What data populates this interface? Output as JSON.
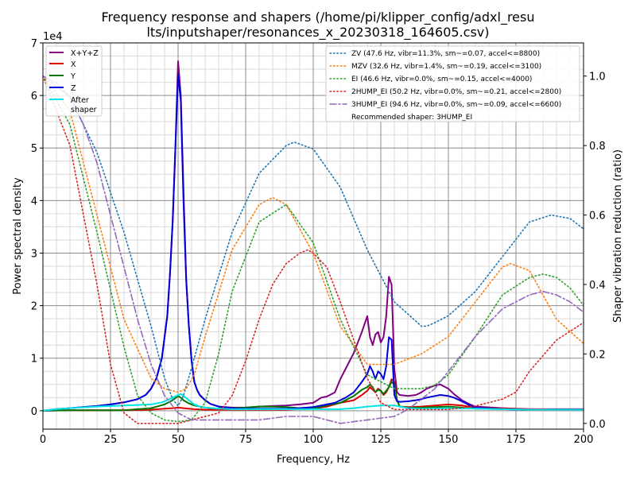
{
  "chart_data": {
    "type": "line",
    "title_line1": "Frequency response and shapers (/home/pi/klipper_config/adxl_resu",
    "title_line2": "lts/inputshaper/resonances_x_20230318_164605.csv)",
    "xlabel": "Frequency, Hz",
    "ylabel": "Power spectral density",
    "y2label": "Shaper vibration reduction (ratio)",
    "offset_label": "1e4",
    "xlim": [
      0,
      200
    ],
    "ylim": [
      -0.35,
      7
    ],
    "y2lim": [
      -0.0165,
      1.0955
    ],
    "x_ticks": [
      0,
      25,
      50,
      75,
      100,
      125,
      150,
      175,
      200
    ],
    "y_ticks": [
      0,
      1,
      2,
      3,
      4,
      5,
      6,
      7
    ],
    "y2_ticks": [
      0.0,
      0.2,
      0.4,
      0.6,
      0.8,
      1.0
    ],
    "x_ticks_minor_step": 5,
    "y_ticks_minor_step": 0.25,
    "grid": true,
    "legend_left": "top-left",
    "legend_right": "top-right",
    "psd_series": [
      {
        "name": "X+Y+Z",
        "color": "#800080",
        "x": [
          0,
          5,
          10,
          15,
          20,
          25,
          30,
          35,
          38,
          40,
          42,
          44,
          46,
          47,
          48,
          49,
          50,
          51,
          52,
          53,
          54,
          55,
          56,
          57,
          58,
          60,
          62,
          65,
          70,
          75,
          80,
          85,
          90,
          95,
          100,
          103,
          105,
          108,
          110,
          112,
          115,
          118,
          120,
          121,
          122,
          123,
          124,
          125,
          126,
          127,
          128,
          129,
          130,
          131,
          132,
          135,
          138,
          140,
          142,
          145,
          147,
          150,
          152,
          155,
          158,
          160,
          170,
          180,
          190,
          200
        ],
        "y": [
          0,
          0.03,
          0.05,
          0.07,
          0.09,
          0.12,
          0.16,
          0.22,
          0.3,
          0.42,
          0.62,
          1.0,
          1.8,
          2.6,
          3.6,
          5.0,
          6.65,
          6.0,
          4.2,
          2.5,
          1.6,
          0.95,
          0.55,
          0.4,
          0.3,
          0.2,
          0.13,
          0.08,
          0.06,
          0.06,
          0.08,
          0.09,
          0.1,
          0.12,
          0.15,
          0.25,
          0.27,
          0.35,
          0.6,
          0.8,
          1.1,
          1.5,
          1.8,
          1.4,
          1.25,
          1.45,
          1.5,
          1.3,
          1.4,
          1.8,
          2.55,
          2.4,
          0.8,
          0.35,
          0.3,
          0.28,
          0.3,
          0.35,
          0.42,
          0.48,
          0.5,
          0.42,
          0.32,
          0.2,
          0.12,
          0.08,
          0.05,
          0.03,
          0.03,
          0.03
        ]
      },
      {
        "name": "X",
        "color": "#dd0000",
        "x": [
          0,
          10,
          20,
          30,
          40,
          45,
          48,
          50,
          52,
          54,
          56,
          60,
          65,
          70,
          80,
          90,
          100,
          105,
          110,
          115,
          118,
          120,
          121,
          122,
          123,
          124,
          125,
          126,
          127,
          128,
          129,
          130,
          131,
          132,
          135,
          140,
          145,
          150,
          155,
          160,
          170,
          180,
          190,
          200
        ],
        "y": [
          0,
          0.01,
          0.01,
          0.01,
          0.02,
          0.04,
          0.05,
          0.06,
          0.05,
          0.04,
          0.03,
          0.02,
          0.02,
          0.02,
          0.02,
          0.02,
          0.04,
          0.08,
          0.15,
          0.2,
          0.3,
          0.38,
          0.45,
          0.4,
          0.35,
          0.42,
          0.38,
          0.3,
          0.35,
          0.45,
          0.6,
          0.55,
          0.2,
          0.08,
          0.07,
          0.08,
          0.1,
          0.12,
          0.1,
          0.06,
          0.04,
          0.03,
          0.02,
          0.02
        ]
      },
      {
        "name": "Y",
        "color": "#007700",
        "x": [
          0,
          10,
          20,
          30,
          35,
          40,
          45,
          48,
          50,
          51,
          52,
          54,
          56,
          60,
          65,
          70,
          75,
          80,
          85,
          90,
          95,
          100,
          105,
          110,
          115,
          118,
          120,
          121,
          122,
          123,
          124,
          125,
          126,
          127,
          128,
          129,
          130,
          131,
          132,
          135,
          140,
          145,
          150,
          155,
          160,
          170,
          180,
          190,
          200
        ],
        "y": [
          0,
          0.01,
          0.01,
          0.01,
          0.03,
          0.05,
          0.12,
          0.2,
          0.28,
          0.25,
          0.2,
          0.14,
          0.1,
          0.06,
          0.04,
          0.05,
          0.06,
          0.08,
          0.08,
          0.07,
          0.05,
          0.05,
          0.1,
          0.15,
          0.28,
          0.4,
          0.45,
          0.5,
          0.45,
          0.35,
          0.4,
          0.38,
          0.32,
          0.38,
          0.45,
          0.55,
          0.5,
          0.2,
          0.08,
          0.06,
          0.06,
          0.07,
          0.08,
          0.06,
          0.04,
          0.03,
          0.02,
          0.02,
          0.02
        ]
      },
      {
        "name": "Z",
        "color": "#0000dd",
        "x": [
          0,
          5,
          10,
          15,
          20,
          25,
          30,
          35,
          38,
          40,
          42,
          44,
          46,
          47,
          48,
          49,
          50,
          51,
          52,
          53,
          54,
          55,
          56,
          57,
          58,
          60,
          62,
          65,
          70,
          75,
          80,
          85,
          90,
          95,
          100,
          103,
          105,
          108,
          110,
          112,
          115,
          118,
          120,
          121,
          122,
          123,
          124,
          125,
          126,
          127,
          128,
          129,
          130,
          131,
          132,
          135,
          138,
          140,
          142,
          145,
          147,
          150,
          152,
          155,
          158,
          160,
          170,
          180,
          190,
          200
        ],
        "y": [
          0,
          0.03,
          0.05,
          0.07,
          0.09,
          0.12,
          0.16,
          0.22,
          0.3,
          0.42,
          0.62,
          1.0,
          1.8,
          2.6,
          3.6,
          5.0,
          6.4,
          5.9,
          4.0,
          2.5,
          1.6,
          0.95,
          0.55,
          0.4,
          0.3,
          0.2,
          0.13,
          0.08,
          0.05,
          0.04,
          0.04,
          0.04,
          0.04,
          0.05,
          0.07,
          0.1,
          0.12,
          0.15,
          0.2,
          0.25,
          0.35,
          0.55,
          0.7,
          0.85,
          0.75,
          0.6,
          0.75,
          0.7,
          0.6,
          0.85,
          1.4,
          1.35,
          0.3,
          0.18,
          0.17,
          0.18,
          0.2,
          0.22,
          0.25,
          0.28,
          0.3,
          0.28,
          0.25,
          0.18,
          0.1,
          0.06,
          0.03,
          0.02,
          0.02,
          0.02
        ]
      },
      {
        "name": "After\nshaper",
        "color": "#00e5e5",
        "x": [
          0,
          5,
          10,
          20,
          30,
          40,
          44,
          46,
          48,
          50,
          51,
          52,
          54,
          56,
          58,
          60,
          65,
          70,
          80,
          90,
          100,
          110,
          115,
          120,
          125,
          130,
          135,
          140,
          150,
          160,
          170,
          180,
          190,
          200
        ],
        "y": [
          0,
          0.03,
          0.05,
          0.08,
          0.1,
          0.12,
          0.16,
          0.2,
          0.25,
          0.3,
          0.32,
          0.28,
          0.2,
          0.12,
          0.08,
          0.06,
          0.04,
          0.03,
          0.03,
          0.03,
          0.03,
          0.03,
          0.05,
          0.08,
          0.1,
          0.1,
          0.05,
          0.04,
          0.05,
          0.04,
          0.03,
          0.02,
          0.02,
          0.02
        ]
      }
    ],
    "shaper_series": [
      {
        "name": "ZV (47.6 Hz, vibr=11.3%, sm~=0.07, accel<=8800)",
        "color": "#1f77b4",
        "dash": "dotted",
        "x": [
          0,
          10,
          20,
          30,
          40,
          45,
          48,
          50,
          52,
          55,
          60,
          70,
          80,
          90,
          93,
          100,
          110,
          120,
          130,
          140,
          142,
          145,
          150,
          160,
          170,
          180,
          188,
          195,
          200
        ],
        "y": [
          1.0,
          0.94,
          0.78,
          0.55,
          0.28,
          0.13,
          0.07,
          0.05,
          0.08,
          0.16,
          0.3,
          0.55,
          0.72,
          0.8,
          0.81,
          0.79,
          0.68,
          0.5,
          0.35,
          0.28,
          0.28,
          0.29,
          0.31,
          0.38,
          0.48,
          0.58,
          0.6,
          0.59,
          0.56
        ]
      },
      {
        "name": "MZV (32.6 Hz, vibr=1.4%, sm~=0.19, accel<=3100)",
        "color": "#ff7f0e",
        "dash": "dotted",
        "x": [
          0,
          10,
          20,
          30,
          40,
          45,
          50,
          53,
          56,
          60,
          70,
          80,
          85,
          90,
          100,
          110,
          120,
          130,
          140,
          150,
          160,
          170,
          173,
          180,
          190,
          200
        ],
        "y": [
          1.0,
          0.9,
          0.6,
          0.3,
          0.13,
          0.1,
          0.09,
          0.1,
          0.14,
          0.25,
          0.5,
          0.63,
          0.65,
          0.63,
          0.49,
          0.28,
          0.17,
          0.17,
          0.2,
          0.25,
          0.35,
          0.45,
          0.46,
          0.44,
          0.3,
          0.23
        ]
      },
      {
        "name": "EI (46.6 Hz, vibr=0.0%, sm~=0.15, accel<=4000)",
        "color": "#2ca02c",
        "dash": "dotted",
        "x": [
          0,
          10,
          20,
          30,
          35,
          40,
          45,
          50,
          55,
          60,
          65,
          70,
          80,
          90,
          100,
          110,
          120,
          130,
          140,
          145,
          150,
          160,
          170,
          180,
          185,
          190,
          195,
          200
        ],
        "y": [
          1.0,
          0.86,
          0.55,
          0.22,
          0.08,
          0.03,
          0.01,
          0.005,
          0.01,
          0.06,
          0.2,
          0.38,
          0.58,
          0.63,
          0.52,
          0.3,
          0.14,
          0.1,
          0.1,
          0.11,
          0.14,
          0.25,
          0.37,
          0.42,
          0.43,
          0.42,
          0.39,
          0.34
        ]
      },
      {
        "name": "2HUMP_EI (50.2 Hz, vibr=0.0%, sm~=0.21, accel<=2800)",
        "color": "#d62728",
        "dash": "dotted",
        "x": [
          0,
          10,
          20,
          25,
          30,
          35,
          40,
          45,
          50,
          55,
          60,
          65,
          70,
          75,
          80,
          85,
          90,
          95,
          98,
          100,
          105,
          110,
          115,
          120,
          125,
          130,
          135,
          140,
          150,
          160,
          170,
          175,
          180,
          190,
          200
        ],
        "y": [
          1.0,
          0.8,
          0.4,
          0.17,
          0.03,
          0.0,
          0.0,
          0.0,
          0.0,
          0.01,
          0.02,
          0.03,
          0.08,
          0.18,
          0.3,
          0.4,
          0.46,
          0.49,
          0.5,
          0.49,
          0.45,
          0.35,
          0.24,
          0.13,
          0.06,
          0.04,
          0.04,
          0.04,
          0.04,
          0.05,
          0.07,
          0.09,
          0.15,
          0.24,
          0.29
        ]
      },
      {
        "name": "3HUMP_EI (94.6 Hz, vibr=0.0%, sm~=0.09, accel<=6600)",
        "color": "#9467bd",
        "dash": "dashdot",
        "x": [
          0,
          5,
          10,
          15,
          20,
          25,
          30,
          35,
          40,
          45,
          50,
          55,
          60,
          70,
          80,
          90,
          95,
          100,
          105,
          110,
          120,
          130,
          135,
          140,
          145,
          150,
          160,
          170,
          180,
          185,
          190,
          195,
          200
        ],
        "y": [
          1.0,
          0.98,
          0.94,
          0.86,
          0.75,
          0.6,
          0.45,
          0.3,
          0.17,
          0.08,
          0.03,
          0.01,
          0.01,
          0.01,
          0.01,
          0.02,
          0.02,
          0.02,
          0.01,
          0.0,
          0.01,
          0.02,
          0.04,
          0.07,
          0.1,
          0.15,
          0.25,
          0.33,
          0.37,
          0.38,
          0.37,
          0.35,
          0.32
        ]
      }
    ],
    "legend_extra": "Recommended shaper: 3HUMP_EI"
  }
}
